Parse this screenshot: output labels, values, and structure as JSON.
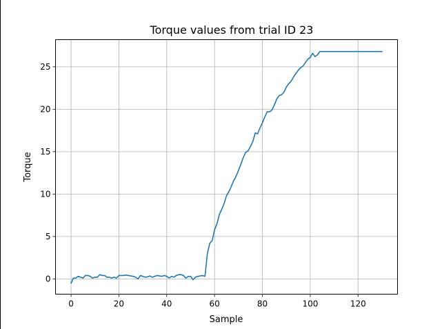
{
  "chart_data": {
    "type": "line",
    "title": "Torque values from trial ID 23",
    "xlabel": "Sample",
    "ylabel": "Torque",
    "xlim": [
      -6.5,
      136.5
    ],
    "ylim": [
      -1.8,
      28.2
    ],
    "xticks": [
      0,
      20,
      40,
      60,
      80,
      100,
      120
    ],
    "yticks": [
      0,
      5,
      10,
      15,
      20,
      25
    ],
    "grid": true,
    "colors": {
      "line": "#1f77b4",
      "grid": "#b0b0b0",
      "axis": "#000000"
    },
    "series": [
      {
        "x": [
          0,
          1,
          2,
          3,
          4,
          5,
          6,
          7,
          8,
          9,
          10,
          11,
          12,
          13,
          14,
          15,
          16,
          17,
          18,
          19,
          20,
          21,
          22,
          23,
          24,
          25,
          26,
          27,
          28,
          29,
          30,
          31,
          32,
          33,
          34,
          35,
          36,
          37,
          38,
          39,
          40,
          41,
          42,
          43,
          44,
          45,
          46,
          47,
          48,
          49,
          50,
          51,
          52,
          53,
          54,
          55,
          56,
          57,
          58,
          59,
          60,
          61,
          62,
          63,
          64,
          65,
          66,
          67,
          68,
          69,
          70,
          71,
          72,
          73,
          74,
          75,
          76,
          77,
          78,
          79,
          80,
          81,
          82,
          83,
          84,
          85,
          86,
          87,
          88,
          89,
          90,
          91,
          92,
          93,
          94,
          95,
          96,
          97,
          98,
          99,
          100,
          101,
          102,
          103,
          104,
          105,
          106,
          107,
          108,
          109,
          110,
          111,
          112,
          113,
          114,
          115,
          116,
          117,
          118,
          119,
          120,
          121,
          122,
          123,
          124,
          125,
          126,
          127,
          128,
          129,
          130
        ],
        "y": [
          -0.5,
          0.1,
          0.1,
          0.3,
          0.2,
          0.1,
          0.4,
          0.4,
          0.3,
          0.1,
          0.2,
          0.2,
          0.5,
          0.4,
          0.4,
          0.2,
          0.2,
          0.1,
          0.2,
          0.1,
          0.4,
          0.4,
          0.4,
          0.45,
          0.4,
          0.35,
          0.3,
          0.2,
          0.0,
          0.4,
          0.3,
          0.2,
          0.25,
          0.35,
          0.2,
          0.3,
          0.4,
          0.35,
          0.3,
          0.4,
          0.3,
          0.1,
          0.3,
          0.2,
          0.4,
          0.5,
          0.5,
          0.4,
          0.1,
          0.3,
          0.3,
          -0.1,
          0.2,
          0.3,
          0.35,
          0.4,
          0.3,
          3.0,
          4.2,
          4.5,
          5.8,
          6.5,
          7.6,
          8.2,
          8.9,
          9.8,
          10.3,
          10.9,
          11.6,
          12.1,
          12.8,
          13.5,
          14.3,
          14.9,
          15.1,
          15.6,
          16.2,
          17.2,
          17.1,
          17.8,
          18.4,
          19.1,
          19.7,
          19.7,
          19.9,
          20.5,
          21.2,
          21.6,
          21.7,
          22.0,
          22.6,
          23.0,
          23.3,
          23.8,
          24.2,
          24.6,
          24.9,
          25.1,
          25.5,
          25.9,
          26.1,
          26.6,
          26.2,
          26.4,
          26.8,
          26.8,
          26.8,
          26.8,
          26.8,
          26.8,
          26.8,
          26.8,
          26.8,
          26.8,
          26.8,
          26.8,
          26.8,
          26.8,
          26.8,
          26.8,
          26.8,
          26.8,
          26.8,
          26.8,
          26.8,
          26.8,
          26.8,
          26.8,
          26.8,
          26.8,
          26.8
        ]
      }
    ]
  }
}
